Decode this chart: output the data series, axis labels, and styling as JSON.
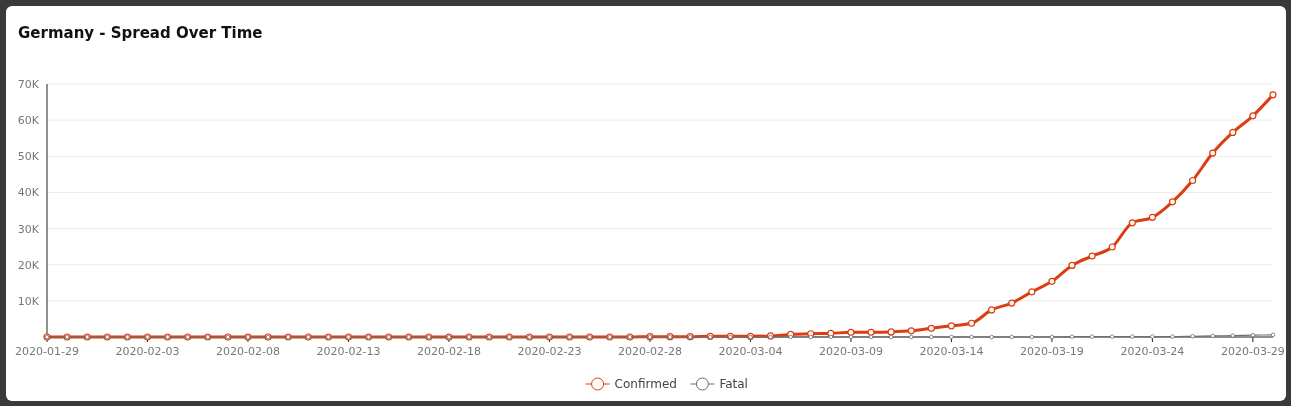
{
  "chart_data": {
    "type": "line",
    "title": "Germany - Spread Over Time",
    "x": [
      "2020-01-29",
      "2020-01-30",
      "2020-01-31",
      "2020-02-01",
      "2020-02-02",
      "2020-02-03",
      "2020-02-04",
      "2020-02-05",
      "2020-02-06",
      "2020-02-07",
      "2020-02-08",
      "2020-02-09",
      "2020-02-10",
      "2020-02-11",
      "2020-02-12",
      "2020-02-13",
      "2020-02-14",
      "2020-02-15",
      "2020-02-16",
      "2020-02-17",
      "2020-02-18",
      "2020-02-19",
      "2020-02-20",
      "2020-02-21",
      "2020-02-22",
      "2020-02-23",
      "2020-02-24",
      "2020-02-25",
      "2020-02-26",
      "2020-02-27",
      "2020-02-28",
      "2020-02-29",
      "2020-03-01",
      "2020-03-02",
      "2020-03-03",
      "2020-03-04",
      "2020-03-05",
      "2020-03-06",
      "2020-03-07",
      "2020-03-08",
      "2020-03-09",
      "2020-03-10",
      "2020-03-11",
      "2020-03-12",
      "2020-03-13",
      "2020-03-14",
      "2020-03-15",
      "2020-03-16",
      "2020-03-17",
      "2020-03-18",
      "2020-03-19",
      "2020-03-20",
      "2020-03-21",
      "2020-03-22",
      "2020-03-23",
      "2020-03-24",
      "2020-03-25",
      "2020-03-26",
      "2020-03-27",
      "2020-03-28",
      "2020-03-29",
      "2020-03-30"
    ],
    "series": [
      {
        "name": "Confirmed",
        "color": "#dc3d0e",
        "values": [
          0,
          0,
          0,
          0,
          0,
          0,
          0,
          0,
          0,
          0,
          0,
          0,
          0,
          0,
          0,
          0,
          0,
          0,
          0,
          0,
          0,
          0,
          0,
          0,
          0,
          0,
          0,
          0,
          0,
          0,
          100,
          100,
          100,
          200,
          200,
          200,
          300,
          700,
          900,
          1000,
          1300,
          1300,
          1400,
          1700,
          2400,
          3100,
          3800,
          7500,
          9400,
          12500,
          15400,
          19800,
          22400,
          24900,
          31600,
          33100,
          37400,
          43300,
          50900,
          56600,
          61200,
          67000
        ]
      },
      {
        "name": "Fatal",
        "color": "#707070",
        "values": [
          0,
          0,
          0,
          0,
          0,
          0,
          0,
          0,
          0,
          0,
          0,
          0,
          0,
          0,
          0,
          0,
          0,
          0,
          0,
          0,
          0,
          0,
          0,
          0,
          0,
          0,
          0,
          0,
          0,
          0,
          0,
          0,
          0,
          0,
          0,
          0,
          0,
          0,
          0,
          0,
          0,
          0,
          0,
          0,
          0,
          0,
          0,
          0,
          0,
          0,
          0,
          100,
          100,
          100,
          100,
          100,
          100,
          200,
          300,
          400,
          500,
          600
        ]
      }
    ],
    "xlim": [
      "2020-01-29",
      "2020-03-30"
    ],
    "xticks": [
      "2020-01-29",
      "2020-02-03",
      "2020-02-08",
      "2020-02-13",
      "2020-02-18",
      "2020-02-23",
      "2020-02-28",
      "2020-03-04",
      "2020-03-09",
      "2020-03-14",
      "2020-03-19",
      "2020-03-24",
      "2020-03-29"
    ],
    "ylim": [
      0,
      70000
    ],
    "yticks": [
      {
        "value": 10000,
        "label": "10K"
      },
      {
        "value": 20000,
        "label": "20K"
      },
      {
        "value": 30000,
        "label": "30K"
      },
      {
        "value": 40000,
        "label": "40K"
      },
      {
        "value": 50000,
        "label": "50K"
      },
      {
        "value": 60000,
        "label": "60K"
      },
      {
        "value": 70000,
        "label": "70K"
      }
    ],
    "grid": "y",
    "legend": "bottom",
    "marker": "circle",
    "line_style": "solid"
  }
}
